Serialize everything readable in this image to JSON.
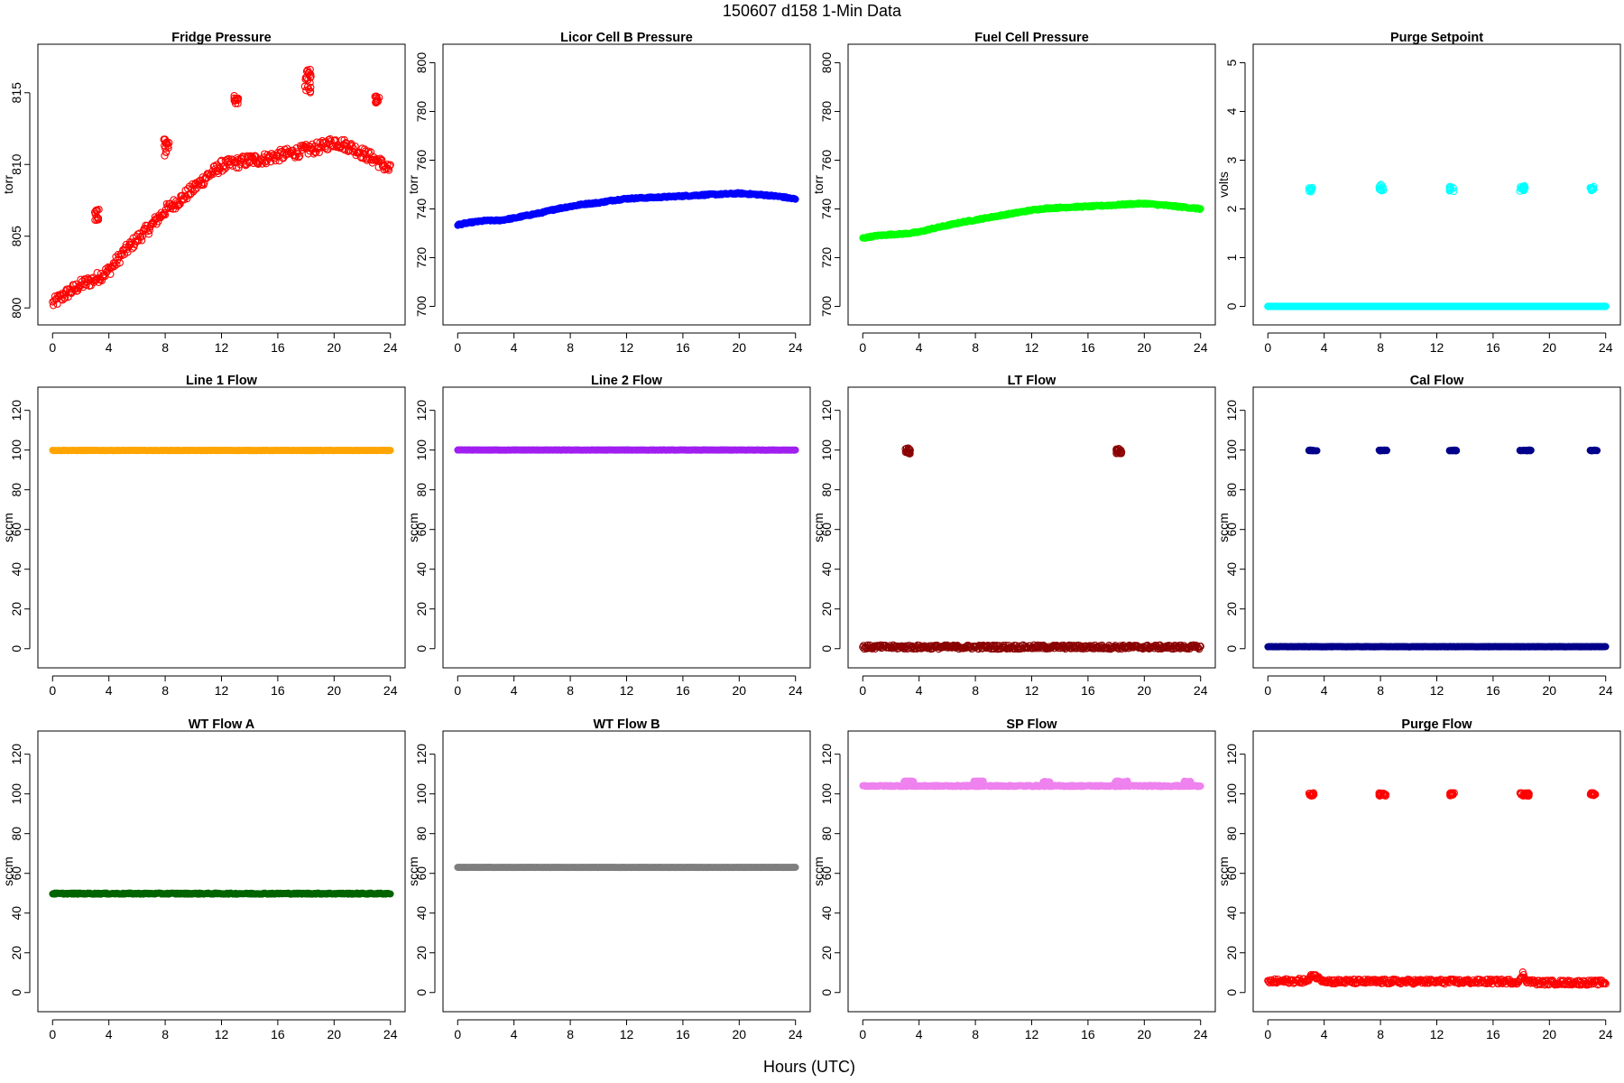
{
  "figure": {
    "title": "150607   d158   1-Min Data",
    "xlabel": "Hours (UTC)"
  },
  "chart_data": [
    {
      "type": "scatter",
      "title": "Fridge Pressure",
      "ylabel": "torr",
      "color": "#ff0000",
      "marker": "open-circle",
      "xlim": [
        0,
        24
      ],
      "xticks": [
        0,
        4,
        8,
        12,
        16,
        20,
        24
      ],
      "ylim": [
        799.6,
        817.6
      ],
      "yticks": [
        800,
        805,
        810,
        815
      ],
      "series": [
        {
          "profile": [
            [
              0,
              800.3
            ],
            [
              1,
              801.0
            ],
            [
              2,
              801.6
            ],
            [
              3,
              802.0
            ],
            [
              4,
              802.6
            ],
            [
              5,
              803.8
            ],
            [
              6,
              804.8
            ],
            [
              7,
              805.7
            ],
            [
              8,
              806.8
            ],
            [
              9,
              807.5
            ],
            [
              10,
              808.3
            ],
            [
              11,
              809.2
            ],
            [
              12,
              809.9
            ],
            [
              13,
              810.1
            ],
            [
              14,
              810.3
            ],
            [
              15,
              810.4
            ],
            [
              16,
              810.6
            ],
            [
              17,
              810.8
            ],
            [
              18,
              811.0
            ],
            [
              19,
              811.2
            ],
            [
              20,
              811.6
            ],
            [
              21,
              811.3
            ],
            [
              22,
              810.8
            ],
            [
              23,
              810.3
            ],
            [
              24,
              809.6
            ]
          ],
          "jitter": 0.4,
          "density": 3
        }
      ],
      "clusters": [
        {
          "x": [
            3.0,
            3.3
          ],
          "y": [
            806.0,
            806.9
          ]
        },
        {
          "x": [
            7.9,
            8.3
          ],
          "y": [
            810.6,
            811.8
          ]
        },
        {
          "x": [
            12.9,
            13.2
          ],
          "y": [
            814.2,
            814.9
          ]
        },
        {
          "x": [
            17.9,
            18.4
          ],
          "y": [
            814.8,
            816.8
          ]
        },
        {
          "x": [
            22.9,
            23.2
          ],
          "y": [
            814.2,
            814.8
          ]
        }
      ]
    },
    {
      "type": "scatter",
      "title": "Licor Cell B Pressure",
      "ylabel": "torr",
      "color": "#0000ff",
      "marker": "filled-circle",
      "xlim": [
        0,
        24
      ],
      "xticks": [
        0,
        4,
        8,
        12,
        16,
        20,
        24
      ],
      "ylim": [
        697,
        803
      ],
      "yticks": [
        700,
        720,
        740,
        760,
        780,
        800
      ],
      "series": [
        {
          "profile": [
            [
              0,
              733.5
            ],
            [
              1,
              734.5
            ],
            [
              2,
              735.2
            ],
            [
              3,
              735.3
            ],
            [
              4,
              736.2
            ],
            [
              5,
              737.4
            ],
            [
              6,
              738.5
            ],
            [
              7,
              740.0
            ],
            [
              8,
              741.0
            ],
            [
              9,
              742.0
            ],
            [
              10,
              742.5
            ],
            [
              11,
              743.5
            ],
            [
              12,
              744.2
            ],
            [
              13,
              744.5
            ],
            [
              14,
              744.7
            ],
            [
              15,
              745.0
            ],
            [
              16,
              745.3
            ],
            [
              17,
              745.6
            ],
            [
              18,
              745.9
            ],
            [
              19,
              746.1
            ],
            [
              20,
              746.4
            ],
            [
              21,
              746.0
            ],
            [
              22,
              745.6
            ],
            [
              23,
              745.0
            ],
            [
              24,
              744.0
            ]
          ],
          "jitter": 0.3,
          "density": 3
        }
      ],
      "clusters": []
    },
    {
      "type": "scatter",
      "title": "Fuel Cell Pressure",
      "ylabel": "torr",
      "color": "#00ff00",
      "marker": "filled-circle",
      "xlim": [
        0,
        24
      ],
      "xticks": [
        0,
        4,
        8,
        12,
        16,
        20,
        24
      ],
      "ylim": [
        697,
        803
      ],
      "yticks": [
        700,
        720,
        740,
        760,
        780,
        800
      ],
      "series": [
        {
          "profile": [
            [
              0,
              728.0
            ],
            [
              1,
              729.0
            ],
            [
              2,
              729.5
            ],
            [
              3,
              729.8
            ],
            [
              4,
              730.5
            ],
            [
              5,
              732.0
            ],
            [
              6,
              733.2
            ],
            [
              7,
              734.5
            ],
            [
              8,
              735.5
            ],
            [
              9,
              736.5
            ],
            [
              10,
              737.5
            ],
            [
              11,
              738.5
            ],
            [
              12,
              739.5
            ],
            [
              13,
              740.2
            ],
            [
              14,
              740.5
            ],
            [
              15,
              740.8
            ],
            [
              16,
              741.0
            ],
            [
              17,
              741.3
            ],
            [
              18,
              741.6
            ],
            [
              19,
              742.0
            ],
            [
              20,
              742.2
            ],
            [
              21,
              741.7
            ],
            [
              22,
              741.2
            ],
            [
              23,
              740.6
            ],
            [
              24,
              740.0
            ]
          ],
          "jitter": 0.3,
          "density": 3
        }
      ],
      "clusters": []
    },
    {
      "type": "scatter",
      "title": "Purge Setpoint",
      "ylabel": "volts",
      "color": "#00ffff",
      "marker": "open-circle",
      "xlim": [
        0,
        24
      ],
      "xticks": [
        0,
        4,
        8,
        12,
        16,
        20,
        24
      ],
      "ylim": [
        -0.15,
        5.15
      ],
      "yticks": [
        0,
        1,
        2,
        3,
        4,
        5
      ],
      "series": [
        {
          "profile": [
            [
              0,
              0
            ],
            [
              24,
              0
            ]
          ],
          "jitter": 0,
          "density": 3
        }
      ],
      "clusters": [
        {
          "x": [
            2.9,
            3.2
          ],
          "y": [
            2.35,
            2.47
          ]
        },
        {
          "x": [
            7.9,
            8.2
          ],
          "y": [
            2.35,
            2.5
          ]
        },
        {
          "x": [
            12.9,
            13.2
          ],
          "y": [
            2.35,
            2.47
          ]
        },
        {
          "x": [
            17.9,
            18.3
          ],
          "y": [
            2.35,
            2.48
          ]
        },
        {
          "x": [
            22.9,
            23.2
          ],
          "y": [
            2.37,
            2.47
          ]
        }
      ]
    },
    {
      "type": "scatter",
      "title": "Line 1 Flow",
      "ylabel": "sccm",
      "color": "#ffa500",
      "marker": "filled-circle",
      "xlim": [
        0,
        24
      ],
      "xticks": [
        0,
        4,
        8,
        12,
        16,
        20,
        24
      ],
      "ylim": [
        -4,
        126
      ],
      "yticks": [
        0,
        20,
        40,
        60,
        80,
        100,
        120
      ],
      "series": [
        {
          "profile": [
            [
              0,
              99.8
            ],
            [
              24,
              99.8
            ]
          ],
          "jitter": 0.1,
          "density": 3
        }
      ],
      "clusters": []
    },
    {
      "type": "scatter",
      "title": "Line 2 Flow",
      "ylabel": "sccm",
      "color": "#a020f0",
      "marker": "filled-circle",
      "xlim": [
        0,
        24
      ],
      "xticks": [
        0,
        4,
        8,
        12,
        16,
        20,
        24
      ],
      "ylim": [
        -4,
        126
      ],
      "yticks": [
        0,
        20,
        40,
        60,
        80,
        100,
        120
      ],
      "series": [
        {
          "profile": [
            [
              0,
              100.0
            ],
            [
              24,
              100.0
            ]
          ],
          "jitter": 0.1,
          "density": 3
        }
      ],
      "clusters": []
    },
    {
      "type": "scatter",
      "title": "LT Flow",
      "ylabel": "sccm",
      "color": "#8b0000",
      "marker": "open-circle",
      "xlim": [
        0,
        24
      ],
      "xticks": [
        0,
        4,
        8,
        12,
        16,
        20,
        24
      ],
      "ylim": [
        -4,
        126
      ],
      "yticks": [
        0,
        20,
        40,
        60,
        80,
        100,
        120
      ],
      "series": [
        {
          "profile": [
            [
              0,
              0.8
            ],
            [
              24,
              0.8
            ]
          ],
          "jitter": 1.0,
          "density": 3
        }
      ],
      "clusters": [
        {
          "x": [
            3.0,
            3.4
          ],
          "y": [
            98.0,
            101.0
          ]
        },
        {
          "x": [
            18.0,
            18.4
          ],
          "y": [
            98.0,
            101.0
          ]
        }
      ]
    },
    {
      "type": "scatter",
      "title": "Cal Flow",
      "ylabel": "sccm",
      "color": "#00008b",
      "marker": "filled-circle",
      "xlim": [
        0,
        24
      ],
      "xticks": [
        0,
        4,
        8,
        12,
        16,
        20,
        24
      ],
      "ylim": [
        -4,
        126
      ],
      "yticks": [
        0,
        20,
        40,
        60,
        80,
        100,
        120
      ],
      "series": [
        {
          "profile": [
            [
              0,
              1.0
            ],
            [
              24,
              1.0
            ]
          ],
          "jitter": 0.1,
          "density": 3
        }
      ],
      "clusters": [
        {
          "x": [
            2.9,
            3.5
          ],
          "y": [
            99.6,
            100.0
          ]
        },
        {
          "x": [
            7.9,
            8.5
          ],
          "y": [
            99.6,
            100.0
          ]
        },
        {
          "x": [
            12.9,
            13.4
          ],
          "y": [
            99.6,
            100.0
          ]
        },
        {
          "x": [
            17.9,
            18.7
          ],
          "y": [
            99.6,
            100.0
          ]
        },
        {
          "x": [
            22.9,
            23.4
          ],
          "y": [
            99.6,
            100.0
          ]
        }
      ]
    },
    {
      "type": "scatter",
      "title": "WT Flow A",
      "ylabel": "sccm",
      "color": "#006400",
      "marker": "filled-circle",
      "xlim": [
        0,
        24
      ],
      "xticks": [
        0,
        4,
        8,
        12,
        16,
        20,
        24
      ],
      "ylim": [
        -4,
        126
      ],
      "yticks": [
        0,
        20,
        40,
        60,
        80,
        100,
        120
      ],
      "series": [
        {
          "profile": [
            [
              0,
              49.8
            ],
            [
              24,
              49.8
            ]
          ],
          "jitter": 0.3,
          "density": 3
        }
      ],
      "clusters": []
    },
    {
      "type": "scatter",
      "title": "WT Flow B",
      "ylabel": "sccm",
      "color": "#7f7f7f",
      "marker": "filled-circle",
      "xlim": [
        0,
        24
      ],
      "xticks": [
        0,
        4,
        8,
        12,
        16,
        20,
        24
      ],
      "ylim": [
        -4,
        126
      ],
      "yticks": [
        0,
        20,
        40,
        60,
        80,
        100,
        120
      ],
      "series": [
        {
          "profile": [
            [
              0,
              63.0
            ],
            [
              24,
              63.0
            ]
          ],
          "jitter": 0.05,
          "density": 3
        }
      ],
      "clusters": []
    },
    {
      "type": "scatter",
      "title": "SP Flow",
      "ylabel": "sccm",
      "color": "#ee82ee",
      "marker": "filled-circle",
      "xlim": [
        0,
        24
      ],
      "xticks": [
        0,
        4,
        8,
        12,
        16,
        20,
        24
      ],
      "ylim": [
        -4,
        126
      ],
      "yticks": [
        0,
        20,
        40,
        60,
        80,
        100,
        120
      ],
      "series": [
        {
          "profile": [
            [
              0,
              104.0
            ],
            [
              24,
              104.0
            ]
          ],
          "jitter": 0.3,
          "density": 3
        }
      ],
      "clusters": [
        {
          "x": [
            2.9,
            3.6
          ],
          "y": [
            105.5,
            106.5
          ]
        },
        {
          "x": [
            7.9,
            8.6
          ],
          "y": [
            105.5,
            106.5
          ]
        },
        {
          "x": [
            12.8,
            13.3
          ],
          "y": [
            105.5,
            106.5
          ]
        },
        {
          "x": [
            17.9,
            18.8
          ],
          "y": [
            105.5,
            106.5
          ]
        },
        {
          "x": [
            22.8,
            23.3
          ],
          "y": [
            105.5,
            106.5
          ]
        }
      ]
    },
    {
      "type": "scatter",
      "title": "Purge Flow",
      "ylabel": "sccm",
      "color": "#ff0000",
      "marker": "open-circle",
      "xlim": [
        0,
        24
      ],
      "xticks": [
        0,
        4,
        8,
        12,
        16,
        20,
        24
      ],
      "ylim": [
        -4,
        126
      ],
      "yticks": [
        0,
        20,
        40,
        60,
        80,
        100,
        120
      ],
      "series": [
        {
          "profile": [
            [
              0,
              5.5
            ],
            [
              2.9,
              6.0
            ],
            [
              3.2,
              9.5
            ],
            [
              3.6,
              7.0
            ],
            [
              4.5,
              5.5
            ],
            [
              17.9,
              5.5
            ],
            [
              18.1,
              9.5
            ],
            [
              18.4,
              6.0
            ],
            [
              19,
              5.0
            ],
            [
              24,
              5.0
            ]
          ],
          "jitter": 1.2,
          "density": 3
        }
      ],
      "clusters": [
        {
          "x": [
            2.9,
            3.3
          ],
          "y": [
            99.0,
            100.5
          ]
        },
        {
          "x": [
            7.9,
            8.4
          ],
          "y": [
            99.0,
            100.5
          ]
        },
        {
          "x": [
            12.9,
            13.3
          ],
          "y": [
            99.0,
            100.5
          ]
        },
        {
          "x": [
            17.9,
            18.6
          ],
          "y": [
            99.0,
            100.5
          ]
        },
        {
          "x": [
            22.9,
            23.3
          ],
          "y": [
            99.0,
            100.5
          ]
        }
      ]
    }
  ]
}
